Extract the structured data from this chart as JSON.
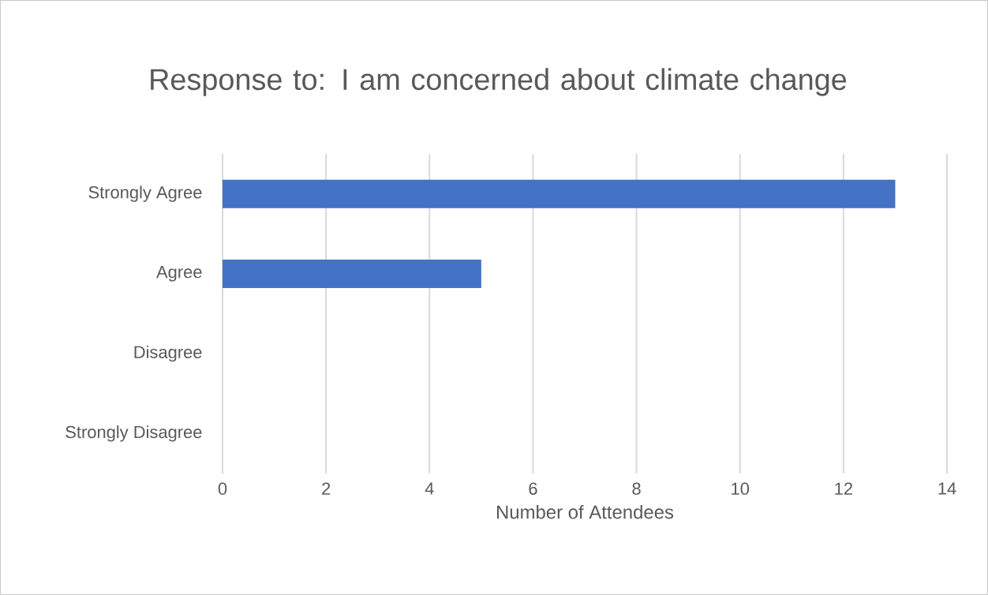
{
  "chart_data": {
    "type": "bar",
    "orientation": "horizontal",
    "title": "Response to: I am concerned about climate change",
    "xlabel": "Number of Attendees",
    "categories": [
      "Strongly Agree",
      "Agree",
      "Disagree",
      "Strongly Disagree"
    ],
    "values": [
      13,
      5,
      0,
      0
    ],
    "color": "#4472c4",
    "xlim": [
      0,
      14
    ],
    "xticks": [
      0,
      2,
      4,
      6,
      8,
      10,
      12,
      14
    ],
    "grid": "x"
  }
}
